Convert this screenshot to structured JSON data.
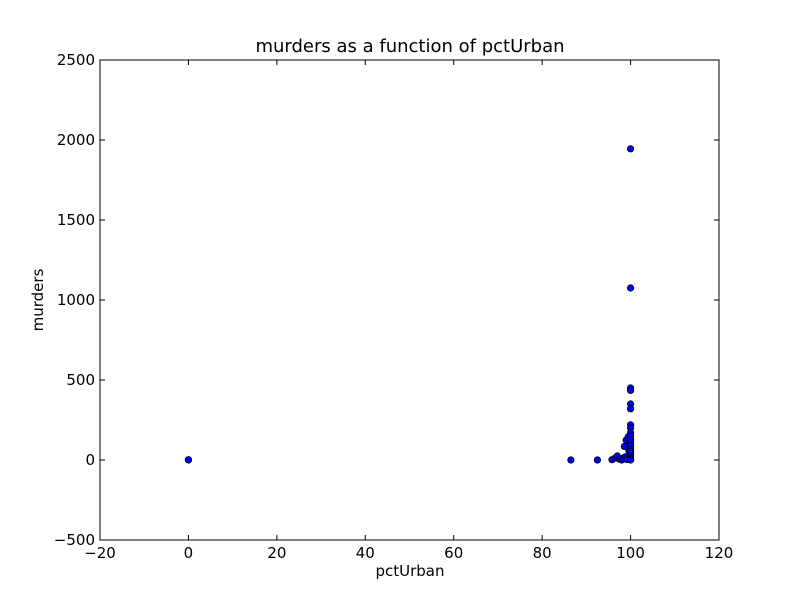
{
  "chart_data": {
    "type": "scatter",
    "title": "murders as a function of pctUrban",
    "xlabel": "pctUrban",
    "ylabel": "murders",
    "xlim": [
      -20,
      120
    ],
    "ylim": [
      -500,
      2500
    ],
    "xticks": [
      -20,
      0,
      20,
      40,
      60,
      80,
      100,
      120
    ],
    "yticks": [
      -500,
      0,
      500,
      1000,
      1500,
      2000,
      2500
    ],
    "xtick_labels": [
      "−20",
      "0",
      "20",
      "40",
      "60",
      "80",
      "100",
      "120"
    ],
    "ytick_labels": [
      "−500",
      "0",
      "500",
      "1000",
      "1500",
      "2000",
      "2500"
    ],
    "grid": false,
    "marker_color": "#0000ff",
    "marker_edge_color": "#000000",
    "points": [
      {
        "x": 0,
        "y": 0
      },
      {
        "x": 0,
        "y": 2
      },
      {
        "x": 86.5,
        "y": 0
      },
      {
        "x": 92.5,
        "y": 0
      },
      {
        "x": 95.8,
        "y": 2
      },
      {
        "x": 96.5,
        "y": 12
      },
      {
        "x": 97,
        "y": 25
      },
      {
        "x": 97.5,
        "y": 5
      },
      {
        "x": 98,
        "y": 0
      },
      {
        "x": 98.2,
        "y": 10
      },
      {
        "x": 98.6,
        "y": 85
      },
      {
        "x": 98.8,
        "y": 20
      },
      {
        "x": 99,
        "y": 125
      },
      {
        "x": 99.2,
        "y": 3
      },
      {
        "x": 99.5,
        "y": 145
      },
      {
        "x": 99.6,
        "y": 60
      },
      {
        "x": 99.7,
        "y": 30
      },
      {
        "x": 99.8,
        "y": 100
      },
      {
        "x": 100,
        "y": 1945
      },
      {
        "x": 100,
        "y": 1075
      },
      {
        "x": 100,
        "y": 450
      },
      {
        "x": 100,
        "y": 435
      },
      {
        "x": 100,
        "y": 350
      },
      {
        "x": 100,
        "y": 320
      },
      {
        "x": 100,
        "y": 220
      },
      {
        "x": 100,
        "y": 200
      },
      {
        "x": 100,
        "y": 170
      },
      {
        "x": 100,
        "y": 150
      },
      {
        "x": 100,
        "y": 130
      },
      {
        "x": 100,
        "y": 110
      },
      {
        "x": 100,
        "y": 90
      },
      {
        "x": 100,
        "y": 70
      },
      {
        "x": 100,
        "y": 55
      },
      {
        "x": 100,
        "y": 40
      },
      {
        "x": 100,
        "y": 25
      },
      {
        "x": 100,
        "y": 12
      },
      {
        "x": 100,
        "y": 5
      },
      {
        "x": 100,
        "y": 0
      }
    ]
  }
}
